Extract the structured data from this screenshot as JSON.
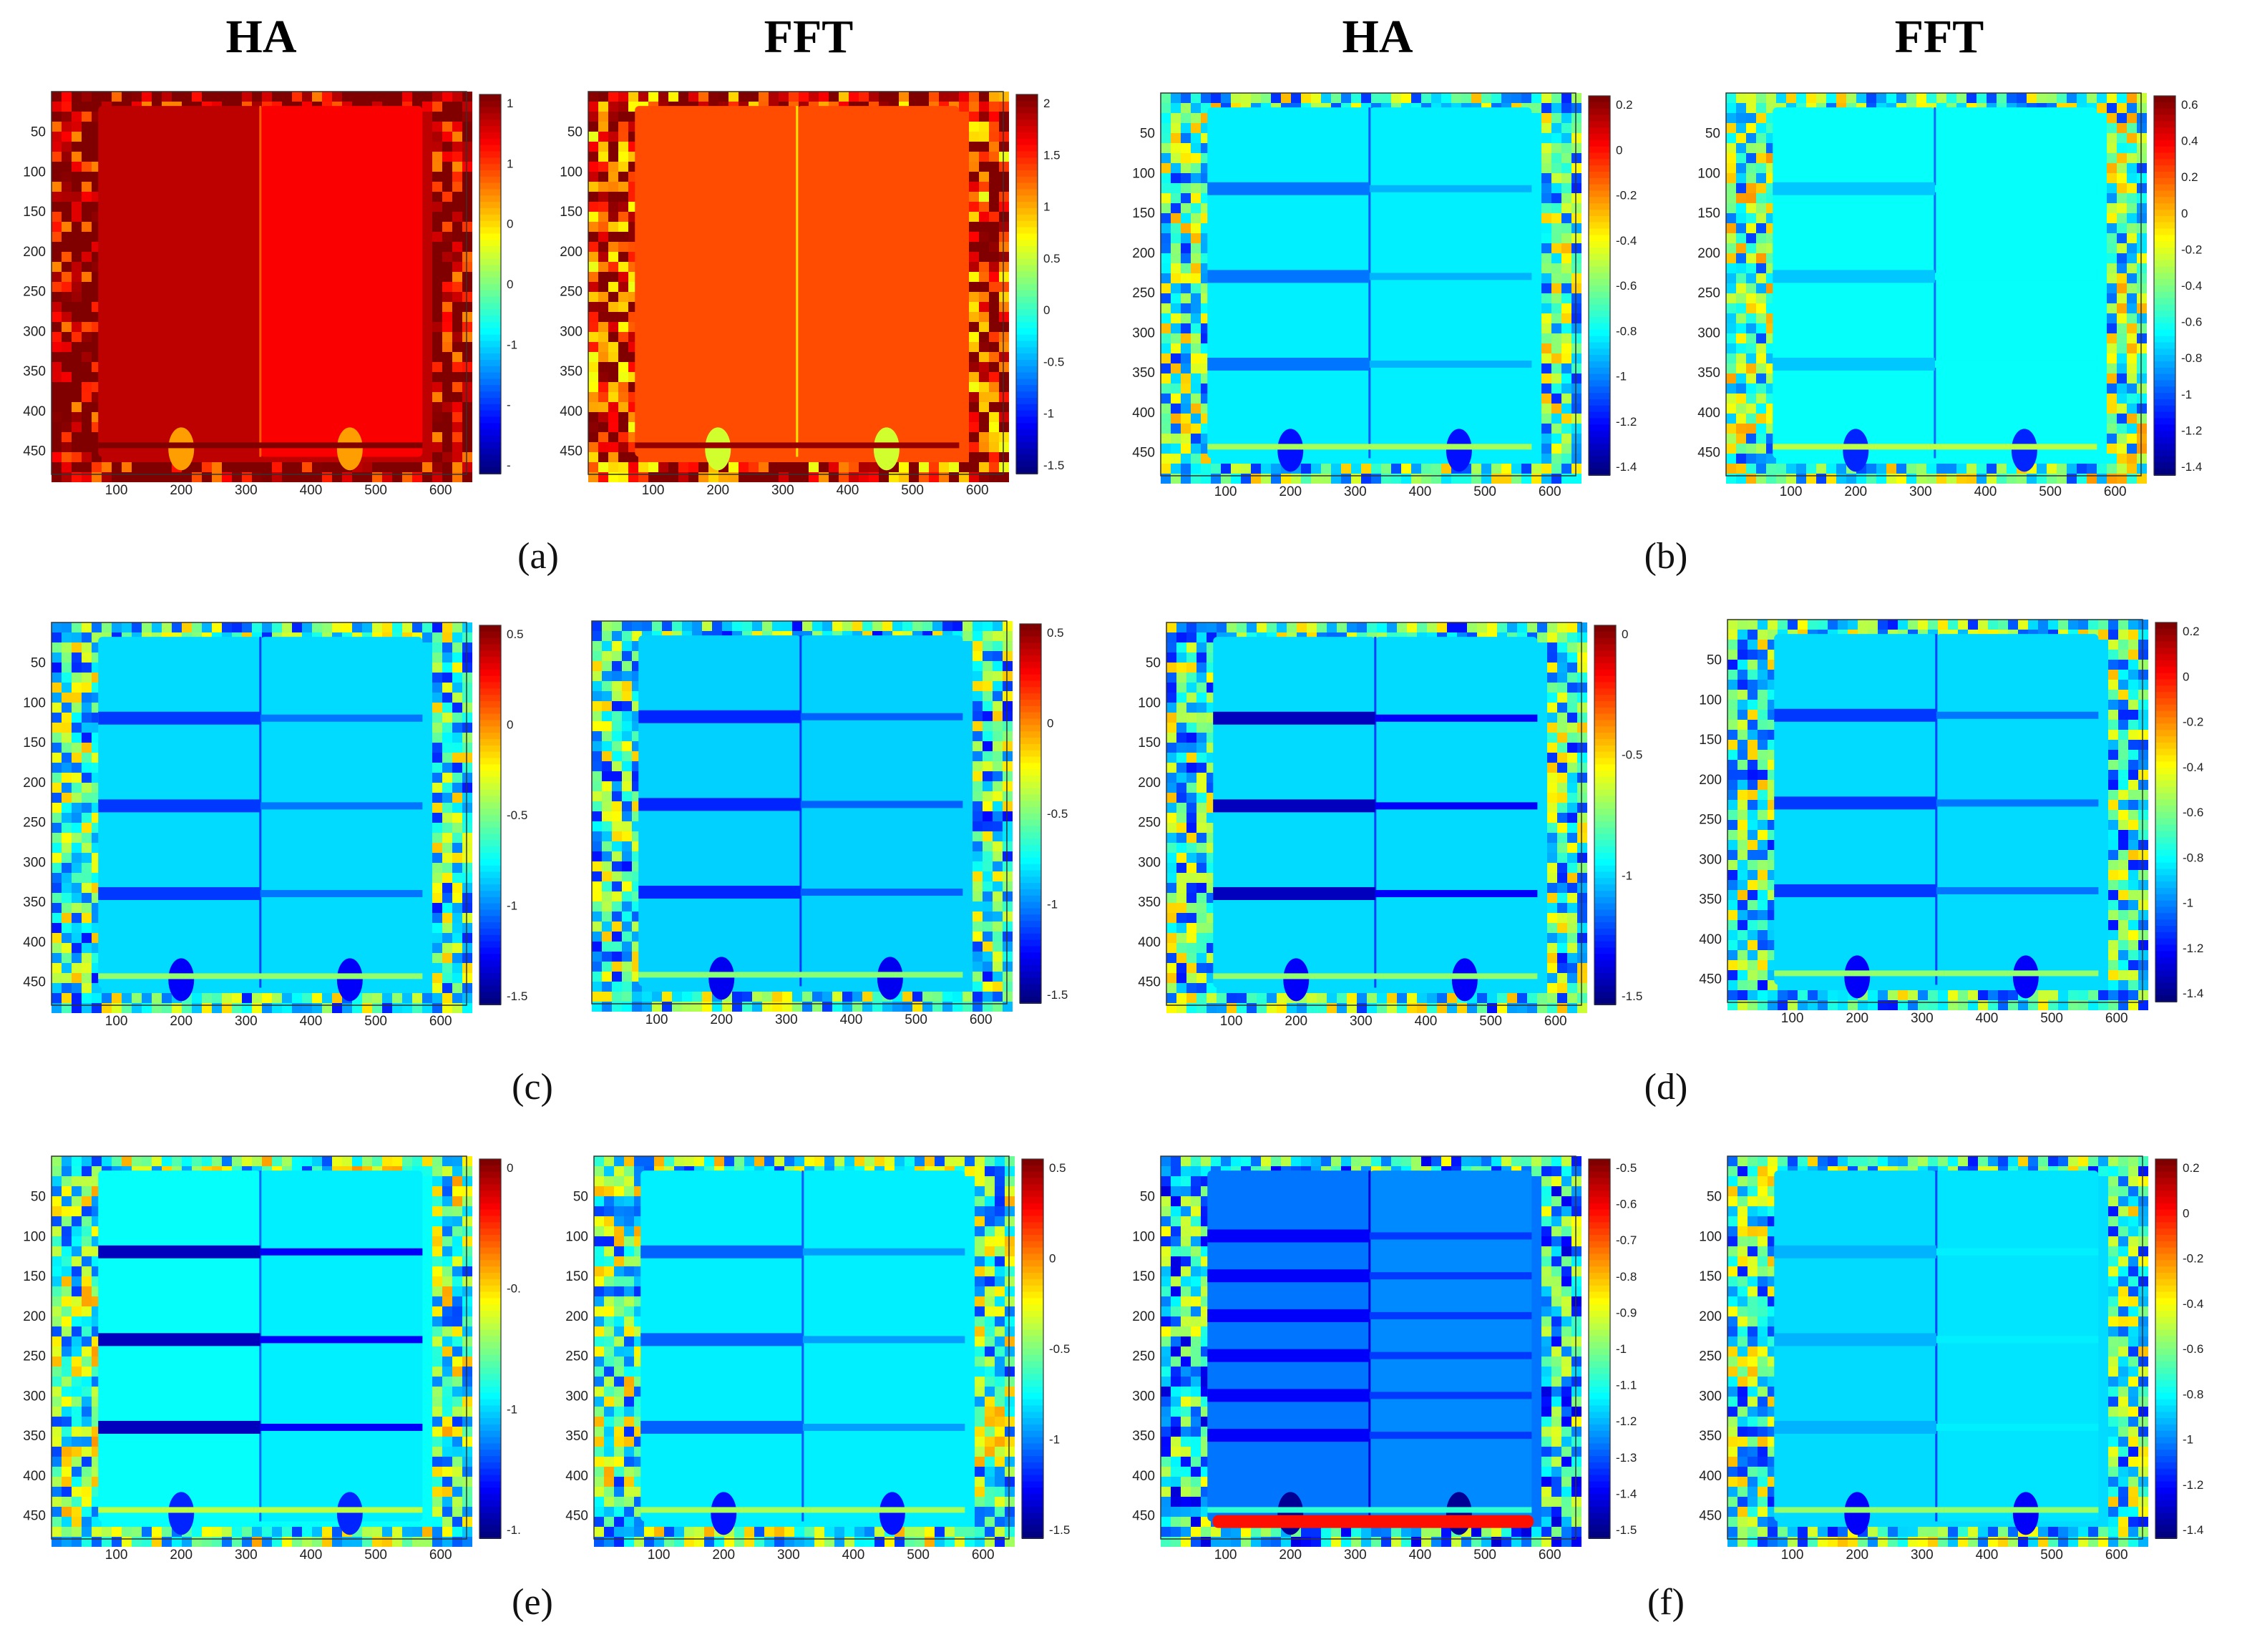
{
  "figure": {
    "column_headers": [
      "HA",
      "FFT",
      "HA",
      "FFT"
    ],
    "captions": [
      "(a)",
      "(b)",
      "(c)",
      "(d)",
      "(e)",
      "(f)"
    ]
  },
  "colors": {
    "background": "#ffffff",
    "colormap": [
      "#00008f",
      "#0000ff",
      "#0080ff",
      "#00ffff",
      "#80ff80",
      "#ffff00",
      "#ff8000",
      "#ff0000",
      "#800000"
    ]
  },
  "chart_data": [
    {
      "type": "heatmap",
      "panel": "a-HA",
      "colormap": "jet",
      "xticks": [
        100,
        200,
        300,
        400,
        500,
        600
      ],
      "yticks": [
        50,
        100,
        150,
        200,
        250,
        300,
        350,
        400,
        450
      ],
      "colorbar_ticks": [
        "1",
        "1",
        "0",
        "0",
        "-1",
        "-",
        "-"
      ],
      "fill_level": 0.94,
      "right_level": 0.88,
      "bands": [],
      "band_level": 0,
      "edge_noise": true,
      "hotspots": false
    },
    {
      "type": "heatmap",
      "panel": "a-FFT",
      "colormap": "jet",
      "xticks": [
        100,
        200,
        300,
        400,
        500,
        600
      ],
      "yticks": [
        50,
        100,
        150,
        200,
        250,
        300,
        350,
        400,
        450
      ],
      "colorbar_ticks": [
        "2",
        "1.5",
        "1",
        "0.5",
        "0",
        "-0.5",
        "-1",
        "-1.5"
      ],
      "fill_level": 0.8,
      "right_level": 0.8,
      "bands": [],
      "band_level": 0,
      "edge_noise": true,
      "hotspots": false
    },
    {
      "type": "heatmap",
      "panel": "b-HA",
      "colormap": "jet",
      "xticks": [
        100,
        200,
        300,
        400,
        500,
        600
      ],
      "yticks": [
        50,
        100,
        150,
        200,
        250,
        300,
        350,
        400,
        450
      ],
      "colorbar_ticks": [
        "0.2",
        "0",
        "-0.2",
        "-0.4",
        "-0.6",
        "-0.8",
        "-1",
        "-1.2",
        "-1.4"
      ],
      "fill_level": 0.36,
      "right_level": 0.36,
      "bands": [
        120,
        230,
        340
      ],
      "band_level": 0.24,
      "edge_noise": true,
      "hotspots": false
    },
    {
      "type": "heatmap",
      "panel": "b-FFT",
      "colormap": "jet",
      "xticks": [
        100,
        200,
        300,
        400,
        500,
        600
      ],
      "yticks": [
        50,
        100,
        150,
        200,
        250,
        300,
        350,
        400,
        450
      ],
      "colorbar_ticks": [
        "0.6",
        "0.4",
        "0.2",
        "0",
        "-0.2",
        "-0.4",
        "-0.6",
        "-0.8",
        "-1",
        "-1.2",
        "-1.4"
      ],
      "fill_level": 0.38,
      "right_level": 0.38,
      "bands": [
        120,
        230,
        340
      ],
      "band_level": 0.32,
      "edge_noise": true,
      "hotspots": false
    },
    {
      "type": "heatmap",
      "panel": "c-HA",
      "colormap": "jet",
      "xticks": [
        100,
        200,
        300,
        400,
        500,
        600
      ],
      "yticks": [
        50,
        100,
        150,
        200,
        250,
        300,
        350,
        400,
        450
      ],
      "colorbar_ticks": [
        "0.5",
        "0",
        "-0.5",
        "-1",
        "-1.5"
      ],
      "fill_level": 0.34,
      "right_level": 0.34,
      "bands": [
        120,
        230,
        340
      ],
      "band_level": 0.18,
      "edge_noise": true,
      "hotspots": false
    },
    {
      "type": "heatmap",
      "panel": "c-FFT",
      "colormap": "jet",
      "xticks": [
        100,
        200,
        300,
        400,
        500,
        600
      ],
      "yticks": [],
      "colorbar_ticks": [
        "0.5",
        "0",
        "-0.5",
        "-1",
        "-1.5"
      ],
      "fill_level": 0.33,
      "right_level": 0.33,
      "bands": [
        120,
        230,
        340
      ],
      "band_level": 0.16,
      "edge_noise": true,
      "hotspots": false
    },
    {
      "type": "heatmap",
      "panel": "d-HA",
      "colormap": "jet",
      "xticks": [
        100,
        200,
        300,
        400,
        500,
        600
      ],
      "yticks": [
        50,
        100,
        150,
        200,
        250,
        300,
        350,
        400,
        450
      ],
      "colorbar_ticks": [
        "0",
        "-0.5",
        "-1",
        "-1.5"
      ],
      "fill_level": 0.34,
      "right_level": 0.34,
      "bands": [
        120,
        230,
        340
      ],
      "band_level": 0.06,
      "edge_noise": true,
      "hotspots": false
    },
    {
      "type": "heatmap",
      "panel": "d-FFT",
      "colormap": "jet",
      "xticks": [
        100,
        200,
        300,
        400,
        500,
        600
      ],
      "yticks": [
        50,
        100,
        150,
        200,
        250,
        300,
        350,
        400,
        450
      ],
      "colorbar_ticks": [
        "0.2",
        "0",
        "-0.2",
        "-0.4",
        "-0.6",
        "-0.8",
        "-1",
        "-1.2",
        "-1.4"
      ],
      "fill_level": 0.34,
      "right_level": 0.34,
      "bands": [
        120,
        230,
        340
      ],
      "band_level": 0.18,
      "edge_noise": true,
      "hotspots": false
    },
    {
      "type": "heatmap",
      "panel": "e-HA",
      "colormap": "jet",
      "xticks": [
        100,
        200,
        300,
        400,
        500,
        600
      ],
      "yticks": [
        50,
        100,
        150,
        200,
        250,
        300,
        350,
        400,
        450
      ],
      "colorbar_ticks": [
        "0",
        "-0.",
        "-1",
        "-1."
      ],
      "fill_level": 0.38,
      "right_level": 0.36,
      "bands": [
        120,
        230,
        340
      ],
      "band_level": 0.06,
      "edge_noise": true,
      "hotspots": false
    },
    {
      "type": "heatmap",
      "panel": "e-FFT",
      "colormap": "jet",
      "xticks": [
        100,
        200,
        300,
        400,
        500,
        600
      ],
      "yticks": [
        50,
        100,
        150,
        200,
        250,
        300,
        350,
        400,
        450
      ],
      "colorbar_ticks": [
        "0.5",
        "0",
        "-0.5",
        "-1",
        "-1.5"
      ],
      "fill_level": 0.36,
      "right_level": 0.36,
      "bands": [
        120,
        230,
        340
      ],
      "band_level": 0.22,
      "edge_noise": true,
      "hotspots": false
    },
    {
      "type": "heatmap",
      "panel": "f-HA",
      "colormap": "jet",
      "xticks": [
        100,
        200,
        300,
        400,
        500,
        600
      ],
      "yticks": [
        50,
        100,
        150,
        200,
        250,
        300,
        350,
        400,
        450
      ],
      "colorbar_ticks": [
        "-0.5",
        "-0.6",
        "-0.7",
        "-0.8",
        "-0.9",
        "-1",
        "-1.1",
        "-1.2",
        "-1.3",
        "-1.4",
        "-1.5"
      ],
      "fill_level": 0.24,
      "right_level": 0.26,
      "bands": [
        100,
        150,
        200,
        250,
        300,
        350
      ],
      "band_level": 0.12,
      "edge_noise": true,
      "hotspots": true
    },
    {
      "type": "heatmap",
      "panel": "f-FFT",
      "colormap": "jet",
      "xticks": [
        100,
        200,
        300,
        400,
        500,
        600
      ],
      "yticks": [
        50,
        100,
        150,
        200,
        250,
        300,
        350,
        400,
        450
      ],
      "colorbar_ticks": [
        "0.2",
        "0",
        "-0.2",
        "-0.4",
        "-0.6",
        "-0.8",
        "-1",
        "-1.2",
        "-1.4"
      ],
      "fill_level": 0.34,
      "right_level": 0.35,
      "bands": [
        120,
        230,
        340
      ],
      "band_level": 0.3,
      "edge_noise": true,
      "hotspots": false
    }
  ]
}
